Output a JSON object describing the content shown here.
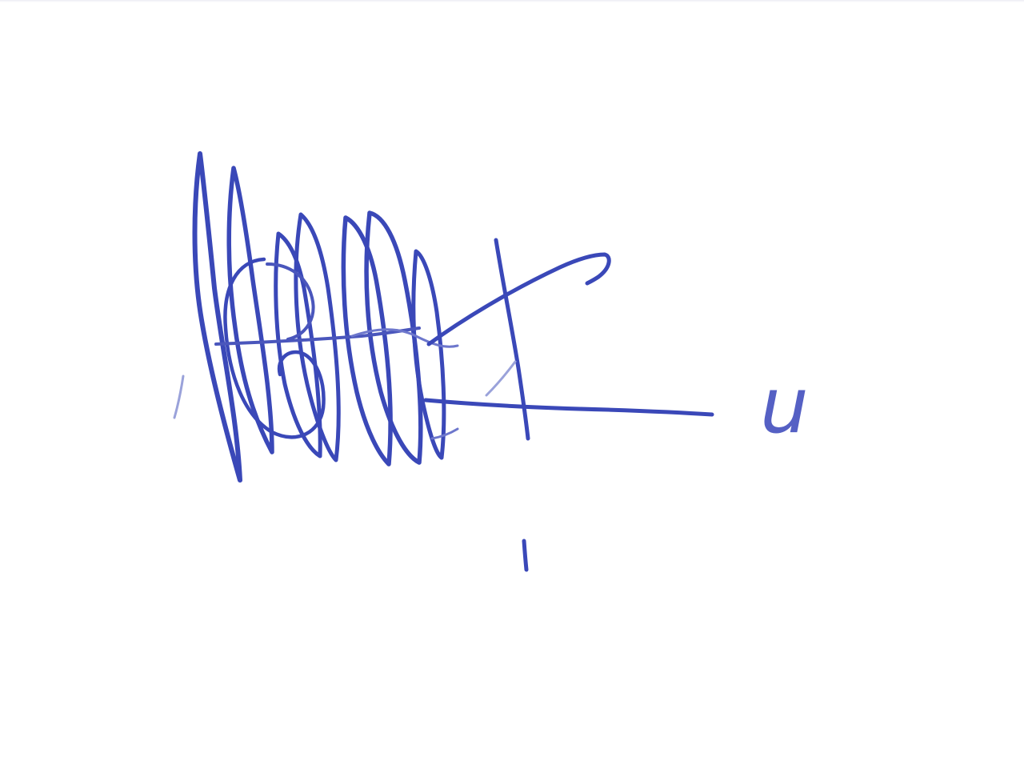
{
  "signature": {
    "initial_text": "u",
    "ink_color": "#3a48b8",
    "ink_light": "#5560c4",
    "ink_faint": "#9aa2da",
    "paper_color": "#ffffff"
  }
}
